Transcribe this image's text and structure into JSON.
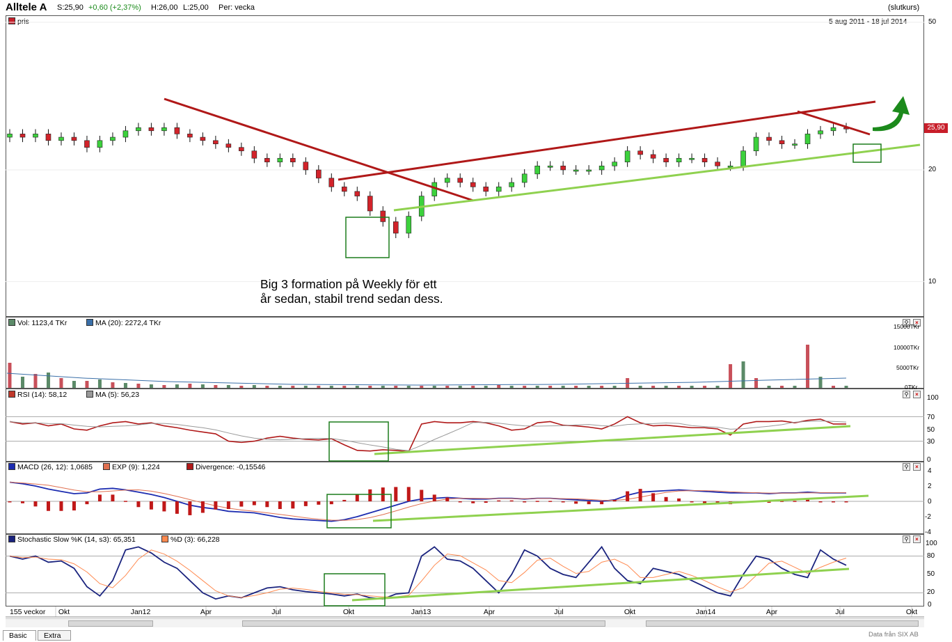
{
  "topbar": {
    "name": "Alltele A",
    "last": "S:25,90",
    "change": "+0,60 (+2,37%)",
    "high": "H:26,00",
    "low": "L:25,00",
    "period": "Per: vecka",
    "price_type": "(slutkurs)"
  },
  "price_panel": {
    "legend": "pris",
    "date_range": "5 aug 2011 - 18 jul 2014",
    "last_badge": "25,90",
    "annotation": "Big 3 formation på Weekly för ett\når sedan, stabil trend sedan dess.",
    "colors": {
      "up": "#3cd13c",
      "down": "#d2232a",
      "trend_red": "#b01818",
      "trend_green": "#8fd14f",
      "box": "#1c7c1c",
      "arrow": "#1c8a1c"
    }
  },
  "volume_panel": {
    "label_vol": "Vol: 1123,4 TKr",
    "label_ma": "MA (20): 2272,4 TKr"
  },
  "rsi_panel": {
    "label_rsi": "RSI (14): 58,12",
    "label_ma": "MA (5): 56,23"
  },
  "macd_panel": {
    "label_macd": "MACD (26, 12): 1,0685",
    "label_exp": "EXP (9): 1,224",
    "label_div": "Divergence: -0,15546"
  },
  "stoch_panel": {
    "label_k": "Stochastic Slow %K (14, s3): 65,351",
    "label_d": "%D (3): 66,228"
  },
  "bottom": {
    "weeks": "155 veckor",
    "tab_basic": "Basic",
    "tab_extra": "Extra",
    "credit": "Data från SIX AB"
  },
  "chart_data": [
    {
      "type": "candlestick",
      "title": "Alltele A",
      "y_axis_ticks": [
        "50",
        "20",
        "10"
      ],
      "x_axis_ticks": [
        "Okt",
        "Jan12",
        "Apr",
        "Jul",
        "Okt",
        "Jan13",
        "Apr",
        "Jul",
        "Okt",
        "Jan14",
        "Apr",
        "Jul",
        "Okt"
      ],
      "log_scale": true,
      "close": [
        25,
        24.5,
        25,
        24,
        24.5,
        24,
        23,
        24,
        24.5,
        25.5,
        26,
        25.5,
        26,
        25,
        24.5,
        24,
        23.5,
        23,
        22.5,
        21.5,
        21,
        21.5,
        21,
        20,
        19,
        18,
        17.5,
        17,
        15.5,
        14.5,
        13.5,
        15,
        17,
        18.5,
        19,
        18.5,
        18,
        17.5,
        18,
        18.5,
        19.5,
        20.5,
        20.5,
        20,
        20,
        20,
        20.5,
        21,
        22.5,
        22,
        21.5,
        21,
        21.5,
        21.5,
        21,
        20.5,
        20.5,
        22.5,
        24.5,
        24,
        23.5,
        23.5,
        25,
        25.5,
        26,
        25.9
      ],
      "volume_ticks": [
        "15000TKr",
        "10000TKr",
        "5000TKr",
        "0TKr"
      ]
    },
    {
      "type": "line",
      "title": "RSI (14)",
      "y_axis_ticks": [
        "100",
        "70",
        "50",
        "30",
        "0"
      ],
      "rsi_last": 58.12,
      "ma_last": 56.23
    },
    {
      "type": "line",
      "title": "MACD (26, 12)",
      "y_axis_ticks": [
        "4",
        "2",
        "0",
        "-2",
        "-4"
      ],
      "macd_last": 1.0685,
      "exp_last": 1.224,
      "divergence_last": -0.15546
    },
    {
      "type": "line",
      "title": "Stochastic Slow %K (14, s3)",
      "y_axis_ticks": [
        "100",
        "80",
        "50",
        "20",
        "0"
      ],
      "k_last": 65.351,
      "d_last": 66.228
    }
  ]
}
